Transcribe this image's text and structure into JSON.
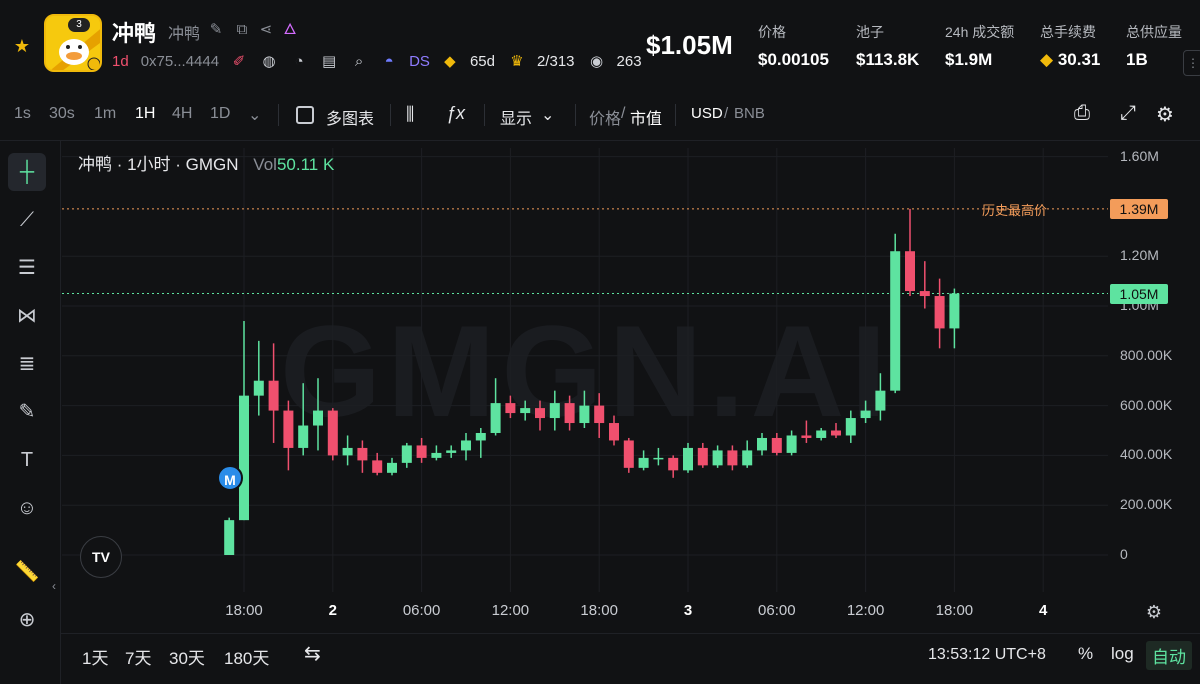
{
  "token": {
    "name": "冲鸭",
    "subname": "冲鸭",
    "avatar_badge": "3",
    "age": "1d",
    "address": "0x75...4444",
    "ds_label": "DS",
    "days": "65d",
    "holders_ratio": "2/313",
    "views": "263"
  },
  "header": {
    "big_price": "$1.05M",
    "stats": [
      {
        "label": "价格",
        "value": "$0.00105"
      },
      {
        "label": "池子",
        "value": "$113.8K"
      },
      {
        "label": "24h 成交额",
        "value": "$1.9M"
      },
      {
        "label": "总手续费",
        "value": "30.31"
      },
      {
        "label": "总供应量",
        "value": "1B"
      }
    ]
  },
  "toolbar": {
    "intervals": [
      "1s",
      "30s",
      "1m",
      "1H",
      "4H",
      "1D"
    ],
    "active_interval": "1H",
    "multi_chart": "多图表",
    "display": "显示",
    "price_label": "价格",
    "slash": "/",
    "mcap_label": "市值",
    "usd_label": "USD",
    "bnb_label": "BNB"
  },
  "chart_header": {
    "title": "冲鸭 · 1小时 · GMGN",
    "vol_label": "Vol",
    "vol_value": "50.11 K",
    "watermark": "GMGN.AI",
    "ath_label": "历史最高价",
    "ath_value": "1.39M",
    "current_value": "1.05M",
    "marker": "M"
  },
  "chart_data": {
    "type": "candlestick",
    "unit": "market cap (USD)",
    "yticks": [
      "1.60M",
      "1.20M",
      "1.00M",
      "800.00K",
      "600.00K",
      "400.00K",
      "200.00K",
      "0"
    ],
    "yvalues": [
      1600000,
      1200000,
      1000000,
      800000,
      600000,
      400000,
      200000,
      0
    ],
    "ylim": [
      0,
      1600000
    ],
    "xticks": [
      {
        "label": "18:00",
        "hour": 0,
        "bold": false
      },
      {
        "label": "2",
        "hour": 6,
        "bold": true
      },
      {
        "label": "06:00",
        "hour": 12,
        "bold": false
      },
      {
        "label": "12:00",
        "hour": 18,
        "bold": false
      },
      {
        "label": "18:00",
        "hour": 24,
        "bold": false
      },
      {
        "label": "3",
        "hour": 30,
        "bold": true
      },
      {
        "label": "06:00",
        "hour": 36,
        "bold": false
      },
      {
        "label": "12:00",
        "hour": 42,
        "bold": false
      },
      {
        "label": "18:00",
        "hour": 48,
        "bold": false
      },
      {
        "label": "4",
        "hour": 54,
        "bold": true
      }
    ],
    "first_candle_hour": -1,
    "ohlc": [
      [
        0,
        140000,
        150000,
        0
      ],
      [
        140000,
        640000,
        940000,
        140000
      ],
      [
        640000,
        700000,
        860000,
        560000
      ],
      [
        700000,
        580000,
        850000,
        450000
      ],
      [
        580000,
        430000,
        620000,
        340000
      ],
      [
        430000,
        520000,
        690000,
        400000
      ],
      [
        520000,
        580000,
        710000,
        420000
      ],
      [
        580000,
        400000,
        590000,
        380000
      ],
      [
        400000,
        430000,
        480000,
        360000
      ],
      [
        430000,
        380000,
        460000,
        330000
      ],
      [
        380000,
        330000,
        410000,
        320000
      ],
      [
        330000,
        370000,
        390000,
        320000
      ],
      [
        370000,
        440000,
        450000,
        350000
      ],
      [
        440000,
        390000,
        470000,
        370000
      ],
      [
        390000,
        410000,
        440000,
        380000
      ],
      [
        410000,
        420000,
        440000,
        390000
      ],
      [
        420000,
        460000,
        490000,
        380000
      ],
      [
        460000,
        490000,
        510000,
        390000
      ],
      [
        490000,
        610000,
        710000,
        480000
      ],
      [
        610000,
        570000,
        640000,
        550000
      ],
      [
        570000,
        590000,
        620000,
        540000
      ],
      [
        590000,
        550000,
        620000,
        500000
      ],
      [
        550000,
        610000,
        660000,
        500000
      ],
      [
        610000,
        530000,
        640000,
        500000
      ],
      [
        530000,
        600000,
        660000,
        510000
      ],
      [
        600000,
        530000,
        650000,
        470000
      ],
      [
        530000,
        460000,
        560000,
        440000
      ],
      [
        460000,
        350000,
        470000,
        330000
      ],
      [
        350000,
        390000,
        420000,
        340000
      ],
      [
        390000,
        390000,
        430000,
        360000
      ],
      [
        390000,
        340000,
        400000,
        310000
      ],
      [
        340000,
        430000,
        450000,
        330000
      ],
      [
        430000,
        360000,
        450000,
        350000
      ],
      [
        360000,
        420000,
        440000,
        350000
      ],
      [
        420000,
        360000,
        440000,
        340000
      ],
      [
        360000,
        420000,
        460000,
        350000
      ],
      [
        420000,
        470000,
        490000,
        400000
      ],
      [
        470000,
        410000,
        490000,
        400000
      ],
      [
        410000,
        480000,
        500000,
        400000
      ],
      [
        480000,
        470000,
        540000,
        450000
      ],
      [
        470000,
        500000,
        510000,
        460000
      ],
      [
        500000,
        480000,
        530000,
        470000
      ],
      [
        480000,
        550000,
        580000,
        450000
      ],
      [
        550000,
        580000,
        620000,
        530000
      ],
      [
        580000,
        660000,
        730000,
        540000
      ],
      [
        660000,
        1220000,
        1290000,
        650000
      ],
      [
        1220000,
        1060000,
        1390000,
        1040000
      ],
      [
        1060000,
        1040000,
        1180000,
        990000
      ],
      [
        1040000,
        910000,
        1110000,
        830000
      ],
      [
        910000,
        1050000,
        1070000,
        830000
      ]
    ]
  },
  "footer": {
    "ranges": [
      "1天",
      "7天",
      "30天",
      "180天"
    ],
    "time": "13:53:12 UTC+8",
    "percent": "%",
    "log": "log",
    "auto": "自动"
  },
  "colors": {
    "up": "#5ee3a0",
    "down": "#f0506e",
    "ath": "#f39c5a",
    "current": "#5ee3a0",
    "grid": "#1d1f23",
    "background": "#111214"
  },
  "icons": {
    "favorite": "star-icon",
    "edit": "pencil-icon",
    "copy": "copy-icon",
    "share": "share-icon",
    "hot": "flame-icon"
  }
}
